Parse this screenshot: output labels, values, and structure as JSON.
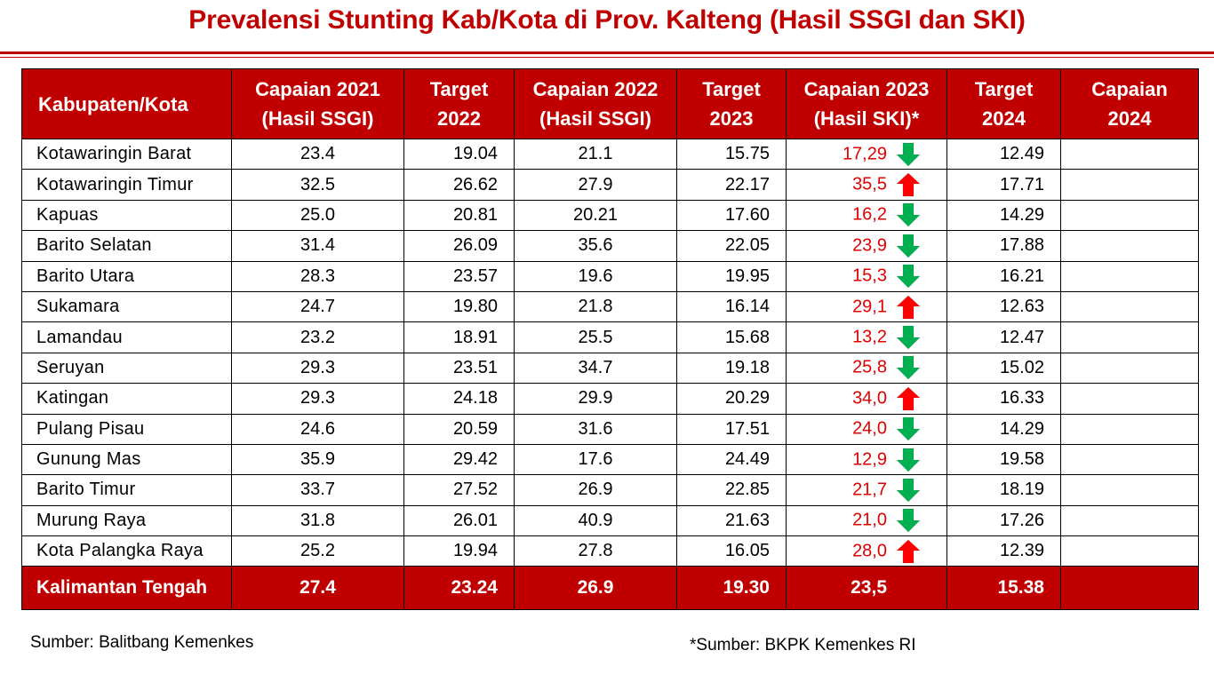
{
  "title": "Prevalensi Stunting Kab/Kota di Prov. Kalteng (Hasil SSGI dan SKI)",
  "colors": {
    "header_bg": "#c00000",
    "up_arrow": "#ff0000",
    "down_arrow": "#00b050",
    "value_2023": "#e00000"
  },
  "table": {
    "headers": [
      {
        "line1": "Kabupaten/Kota",
        "line2": ""
      },
      {
        "line1": "Capaian 2021",
        "line2": "(Hasil SSGI)"
      },
      {
        "line1": "Target",
        "line2": "2022"
      },
      {
        "line1": "Capaian 2022",
        "line2": "(Hasil SSGI)"
      },
      {
        "line1": "Target",
        "line2": "2023"
      },
      {
        "line1": "Capaian 2023",
        "line2": "(Hasil SKI)*"
      },
      {
        "line1": "Target",
        "line2": "2024"
      },
      {
        "line1": "Capaian",
        "line2": "2024"
      }
    ],
    "rows": [
      {
        "name": "Kotawaringin Barat",
        "c2021": "23.4",
        "t2022": "19.04",
        "c2022": "21.1",
        "t2023": "15.75",
        "c2023": "17,29",
        "trend": "down-arrow-icon",
        "t2024": "12.49",
        "c2024": ""
      },
      {
        "name": "Kotawaringin Timur",
        "c2021": "32.5",
        "t2022": "26.62",
        "c2022": "27.9",
        "t2023": "22.17",
        "c2023": "35,5",
        "trend": "up-arrow-icon",
        "t2024": "17.71",
        "c2024": ""
      },
      {
        "name": "Kapuas",
        "c2021": "25.0",
        "t2022": "20.81",
        "c2022": "20.21",
        "t2023": "17.60",
        "c2023": "16,2",
        "trend": "down-arrow-icon",
        "t2024": "14.29",
        "c2024": ""
      },
      {
        "name": "Barito Selatan",
        "c2021": "31.4",
        "t2022": "26.09",
        "c2022": "35.6",
        "t2023": "22.05",
        "c2023": "23,9",
        "trend": "down-arrow-icon",
        "t2024": "17.88",
        "c2024": ""
      },
      {
        "name": "Barito Utara",
        "c2021": "28.3",
        "t2022": "23.57",
        "c2022": "19.6",
        "t2023": "19.95",
        "c2023": "15,3",
        "trend": "down-arrow-icon",
        "t2024": "16.21",
        "c2024": ""
      },
      {
        "name": "Sukamara",
        "c2021": "24.7",
        "t2022": "19.80",
        "c2022": "21.8",
        "t2023": "16.14",
        "c2023": "29,1",
        "trend": "up-arrow-icon",
        "t2024": "12.63",
        "c2024": ""
      },
      {
        "name": "Lamandau",
        "c2021": "23.2",
        "t2022": "18.91",
        "c2022": "25.5",
        "t2023": "15.68",
        "c2023": "13,2",
        "trend": "down-arrow-icon",
        "t2024": "12.47",
        "c2024": ""
      },
      {
        "name": "Seruyan",
        "c2021": "29.3",
        "t2022": "23.51",
        "c2022": "34.7",
        "t2023": "19.18",
        "c2023": "25,8",
        "trend": "down-arrow-icon",
        "t2024": "15.02",
        "c2024": ""
      },
      {
        "name": "Katingan",
        "c2021": "29.3",
        "t2022": "24.18",
        "c2022": "29.9",
        "t2023": "20.29",
        "c2023": "34,0",
        "trend": "up-arrow-icon",
        "t2024": "16.33",
        "c2024": ""
      },
      {
        "name": "Pulang Pisau",
        "c2021": "24.6",
        "t2022": "20.59",
        "c2022": "31.6",
        "t2023": "17.51",
        "c2023": "24,0",
        "trend": "down-arrow-icon",
        "t2024": "14.29",
        "c2024": ""
      },
      {
        "name": "Gunung Mas",
        "c2021": "35.9",
        "t2022": "29.42",
        "c2022": "17.6",
        "t2023": "24.49",
        "c2023": "12,9",
        "trend": "down-arrow-icon",
        "t2024": "19.58",
        "c2024": ""
      },
      {
        "name": "Barito Timur",
        "c2021": "33.7",
        "t2022": "27.52",
        "c2022": "26.9",
        "t2023": "22.85",
        "c2023": "21,7",
        "trend": "down-arrow-icon",
        "t2024": "18.19",
        "c2024": ""
      },
      {
        "name": "Murung Raya",
        "c2021": "31.8",
        "t2022": "26.01",
        "c2022": "40.9",
        "t2023": "21.63",
        "c2023": "21,0",
        "trend": "down-arrow-icon",
        "t2024": "17.26",
        "c2024": ""
      },
      {
        "name": "Kota Palangka Raya",
        "c2021": "25.2",
        "t2022": "19.94",
        "c2022": "27.8",
        "t2023": "16.05",
        "c2023": "28,0",
        "trend": "up-arrow-icon",
        "t2024": "12.39",
        "c2024": ""
      }
    ],
    "total": {
      "name": "Kalimantan Tengah",
      "c2021": "27.4",
      "t2022": "23.24",
      "c2022": "26.9",
      "t2023": "19.30",
      "c2023": "23,5",
      "t2024": "15.38",
      "c2024": ""
    }
  },
  "footer": {
    "source_left": "Sumber: Balitbang Kemenkes",
    "source_right": "*Sumber: BKPK Kemenkes RI"
  }
}
